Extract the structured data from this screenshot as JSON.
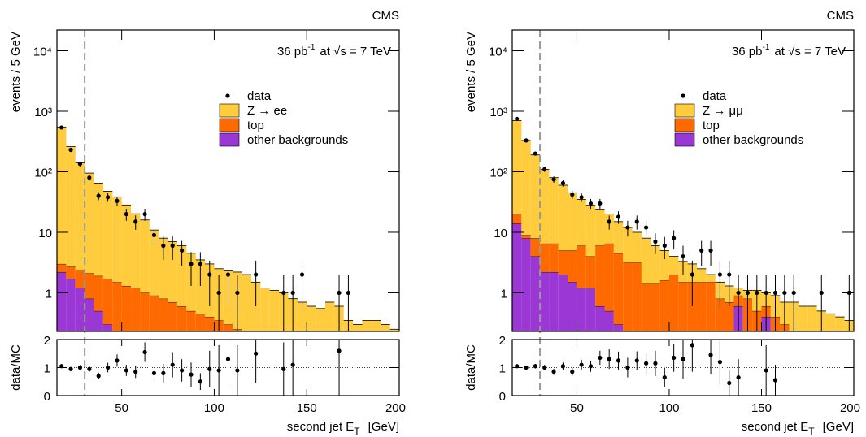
{
  "chart_data": [
    {
      "type": "histogram",
      "experiment": "CMS",
      "lumi": "36 pb",
      "lumi_exp": "-1",
      "energy_text": "at √s = 7 TeV",
      "ylabel": "events / 5 GeV",
      "xlabel": "second jet E",
      "xlabel_sub": "T",
      "xlabel_unit": "[GeV]",
      "xlim": [
        15,
        200
      ],
      "xticks": [
        50,
        100,
        150,
        200
      ],
      "log_y": true,
      "ylim": [
        0.23,
        22000
      ],
      "yticks": [
        1,
        10,
        {
          "value": 100,
          "label": "10²"
        },
        {
          "value": 1000,
          "label": "10³"
        },
        {
          "value": 10000,
          "label": "10⁴"
        }
      ],
      "cut": 30,
      "bins": [
        15,
        20,
        25,
        30,
        35,
        40,
        45,
        50,
        55,
        60,
        65,
        70,
        75,
        80,
        85,
        90,
        95,
        100,
        105,
        110,
        115,
        120,
        125,
        130,
        135,
        140,
        145,
        150,
        155,
        160,
        165,
        170,
        175,
        180,
        185,
        190,
        195,
        200
      ],
      "series": [
        {
          "name": "other backgrounds",
          "color": "#9b37d4",
          "values": [
            2.2,
            1.7,
            1.2,
            0.8,
            0.5,
            0.3,
            0,
            0,
            0,
            0,
            0,
            0,
            0,
            0,
            0,
            0,
            0,
            0,
            0,
            0,
            0,
            0,
            0,
            0,
            0,
            0,
            0,
            0,
            0,
            0,
            0,
            0,
            0,
            0,
            0,
            0,
            0
          ]
        },
        {
          "name": "top",
          "color": "#ff6a00",
          "values": [
            0.8,
            1.0,
            1.2,
            1.3,
            1.4,
            1.4,
            1.5,
            1.3,
            1.2,
            1.0,
            0.9,
            0.8,
            0.7,
            0.6,
            0.5,
            0.45,
            0.4,
            0.35,
            0.3,
            0.25,
            0,
            0,
            0,
            0,
            0,
            0,
            0,
            0,
            0,
            0,
            0,
            0,
            0,
            0,
            0,
            0,
            0
          ]
        },
        {
          "name": "Z → ee",
          "color": "#ffcc3d",
          "values": [
            547,
            257,
            138,
            93,
            63,
            46,
            37,
            27,
            19,
            15,
            10,
            7.2,
            6.3,
            5.4,
            4.0,
            3.05,
            2.6,
            2.15,
            2.0,
            1.95,
            2.0,
            1.5,
            1.2,
            1.1,
            1.0,
            0.8,
            0.7,
            0.6,
            0.55,
            0.7,
            0.6,
            0.35,
            0.3,
            0.35,
            0.35,
            0.3,
            0.25
          ]
        }
      ],
      "data": {
        "name": "data",
        "x": [
          17.5,
          22.5,
          27.5,
          32.5,
          37.5,
          42.5,
          47.5,
          52.5,
          57.5,
          62.5,
          67.5,
          72.5,
          77.5,
          82.5,
          87.5,
          92.5,
          97.5,
          102.5,
          107.5,
          112.5,
          122.5,
          137.5,
          142.5,
          147.5,
          167.5,
          172.5
        ],
        "values": [
          540,
          230,
          135,
          80,
          40,
          38,
          33,
          20,
          15,
          20,
          9,
          6,
          6,
          5,
          3,
          3,
          2,
          1,
          2,
          1,
          2,
          1,
          1,
          2,
          1,
          1
        ],
        "errors": [
          23,
          15,
          12,
          9,
          6,
          6,
          6,
          4.5,
          4,
          4.5,
          3,
          2.5,
          2.5,
          2.2,
          1.7,
          1.7,
          1.4,
          1,
          1.4,
          1,
          1.4,
          1,
          1,
          1.4,
          1,
          1
        ]
      },
      "ratio": {
        "ylabel": "data/MC",
        "ylim": [
          0,
          2
        ],
        "yticks": [
          0,
          1,
          2
        ],
        "reference": 1,
        "x": [
          17.5,
          22.5,
          27.5,
          32.5,
          37.5,
          42.5,
          47.5,
          52.5,
          57.5,
          62.5,
          67.5,
          72.5,
          77.5,
          82.5,
          87.5,
          92.5,
          97.5,
          102.5,
          107.5,
          112.5,
          122.5,
          137.5,
          142.5,
          167.5
        ],
        "values": [
          1.05,
          0.95,
          1.0,
          0.95,
          0.7,
          1.0,
          1.25,
          0.9,
          0.85,
          1.55,
          0.8,
          0.8,
          1.1,
          0.9,
          0.75,
          0.5,
          0.95,
          0.9,
          1.3,
          0.9,
          1.5,
          0.95,
          1.1,
          1.6
        ],
        "errors": [
          0.05,
          0.07,
          0.09,
          0.11,
          0.12,
          0.17,
          0.22,
          0.2,
          0.22,
          0.35,
          0.27,
          0.33,
          0.45,
          0.4,
          0.43,
          0.3,
          0.65,
          0.9,
          0.95,
          0.9,
          1.05,
          0.95,
          1.1,
          1.6
        ]
      }
    },
    {
      "type": "histogram",
      "experiment": "CMS",
      "lumi": "36 pb",
      "lumi_exp": "-1",
      "energy_text": "at √s = 7 TeV",
      "ylabel": "events / 5 GeV",
      "xlabel": "second jet E",
      "xlabel_sub": "T",
      "xlabel_unit": "[GeV]",
      "xlim": [
        15,
        200
      ],
      "xticks": [
        50,
        100,
        150,
        200
      ],
      "log_y": true,
      "ylim": [
        0.23,
        22000
      ],
      "yticks": [
        1,
        10,
        {
          "value": 100,
          "label": "10²"
        },
        {
          "value": 1000,
          "label": "10³"
        },
        {
          "value": 10000,
          "label": "10⁴"
        }
      ],
      "cut": 30,
      "bins": [
        15,
        20,
        25,
        30,
        35,
        40,
        45,
        50,
        55,
        60,
        65,
        70,
        75,
        80,
        85,
        90,
        95,
        100,
        105,
        110,
        115,
        120,
        125,
        130,
        135,
        140,
        145,
        150,
        155,
        160,
        165,
        170,
        175,
        180,
        185,
        190,
        195,
        200
      ],
      "series": [
        {
          "name": "other backgrounds",
          "color": "#9b37d4",
          "values": [
            14,
            8,
            4,
            2.2,
            2.2,
            2.0,
            1.5,
            1.2,
            1.2,
            0.6,
            0.5,
            0.3,
            0,
            0,
            0,
            0,
            0,
            0,
            0,
            0,
            0,
            0,
            0,
            0,
            0.6,
            0,
            0,
            0.4,
            0,
            0,
            0,
            0,
            0,
            0,
            0,
            0,
            0
          ]
        },
        {
          "name": "top",
          "color": "#ff6a00",
          "values": [
            6,
            1,
            4,
            4.3,
            4.3,
            3,
            3.5,
            4.8,
            2.8,
            5.4,
            6,
            4.2,
            3.2,
            3.2,
            1.4,
            1.4,
            1.6,
            2.0,
            1.5,
            1.5,
            1.5,
            1.5,
            0.8,
            0.7,
            0.3,
            0.8,
            0.5,
            0.2,
            0.4,
            0.3,
            0,
            0,
            0,
            0,
            0,
            0,
            0
          ]
        },
        {
          "name": "Z → μμ",
          "color": "#ffcc3d",
          "values": [
            680,
            321,
            182,
            103.5,
            73.5,
            55,
            40,
            29,
            24,
            18,
            13.5,
            10.5,
            8.8,
            6.8,
            6.6,
            4.6,
            3.4,
            2.0,
            1.8,
            1.5,
            1.0,
            0.5,
            0.7,
            0.6,
            0.3,
            0.3,
            0.6,
            0.4,
            0.5,
            0.4,
            0.7,
            0.6,
            0.6,
            0.5,
            0.45,
            0.4,
            0.35
          ]
        }
      ],
      "data": {
        "name": "data",
        "x": [
          17.5,
          22.5,
          27.5,
          32.5,
          37.5,
          42.5,
          47.5,
          52.5,
          57.5,
          62.5,
          67.5,
          72.5,
          77.5,
          82.5,
          87.5,
          92.5,
          97.5,
          102.5,
          107.5,
          112.5,
          117.5,
          122.5,
          127.5,
          132.5,
          137.5,
          142.5,
          147.5,
          152.5,
          157.5,
          162.5,
          167.5,
          182.5,
          197.5
        ],
        "values": [
          750,
          330,
          200,
          110,
          75,
          65,
          42,
          38,
          30,
          30,
          15,
          18,
          12,
          15,
          12,
          7,
          6,
          8,
          4,
          2,
          5,
          5,
          2,
          2,
          1,
          1,
          1,
          1,
          1,
          1,
          1,
          1,
          1
        ],
        "errors": [
          27,
          18,
          14,
          10.5,
          8.7,
          8,
          6.5,
          6.2,
          5.5,
          5.5,
          3.9,
          4.2,
          3.5,
          3.9,
          3.5,
          2.6,
          2.4,
          2.8,
          2,
          1.4,
          2.2,
          2.2,
          1.4,
          1.4,
          1,
          1,
          1,
          1,
          1,
          1,
          1,
          1,
          1
        ]
      },
      "ratio": {
        "ylabel": "data/MC",
        "ylim": [
          0,
          2
        ],
        "yticks": [
          0,
          1,
          2
        ],
        "reference": 1,
        "x": [
          17.5,
          22.5,
          27.5,
          32.5,
          37.5,
          42.5,
          47.5,
          52.5,
          57.5,
          62.5,
          67.5,
          72.5,
          77.5,
          82.5,
          87.5,
          92.5,
          97.5,
          102.5,
          107.5,
          112.5,
          122.5,
          127.5,
          132.5,
          137.5,
          152.5,
          157.5
        ],
        "values": [
          1.05,
          1.0,
          1.05,
          1.0,
          0.85,
          1.05,
          0.85,
          1.1,
          1.05,
          1.35,
          1.3,
          1.25,
          1.0,
          1.25,
          1.15,
          1.15,
          0.65,
          1.35,
          1.3,
          1.8,
          1.45,
          1.2,
          0.45,
          0.65,
          0.9,
          0.55
        ],
        "errors": [
          0.04,
          0.06,
          0.08,
          0.1,
          0.11,
          0.13,
          0.14,
          0.18,
          0.2,
          0.25,
          0.35,
          0.32,
          0.35,
          0.33,
          0.38,
          0.45,
          0.35,
          0.5,
          0.7,
          0.95,
          0.7,
          0.8,
          0.45,
          0.65,
          0.9,
          0.55
        ]
      }
    }
  ]
}
